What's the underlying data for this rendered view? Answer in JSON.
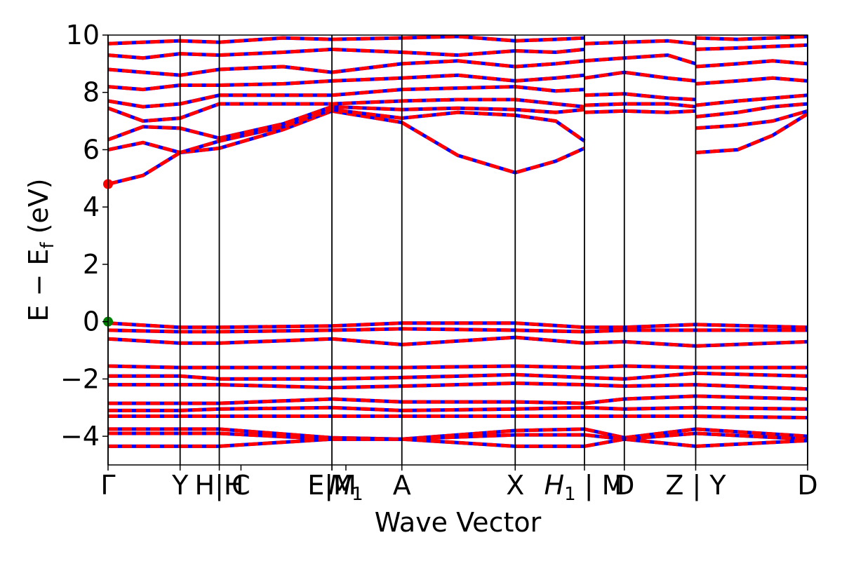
{
  "chart_data": {
    "type": "line",
    "xlabel": "Wave Vector",
    "ylabel": "E − E",
    "ylabel_sub": "f",
    "ylabel_unit": " (eV)",
    "ylim": [
      -5,
      10
    ],
    "yticks": [
      -4,
      -2,
      0,
      2,
      4,
      6,
      8,
      10
    ],
    "ytick_labels": [
      "−4",
      "−2",
      "0",
      "2",
      "4",
      "6",
      "8",
      "10"
    ],
    "kpath": [
      {
        "label": "Γ",
        "x": 0.0
      },
      {
        "label": "Y",
        "x": 0.103
      },
      {
        "label": "H|H",
        "x": 0.159
      },
      {
        "label": "C",
        "x": 0.19
      },
      {
        "label": "E|M",
        "x": 0.32
      },
      {
        "label": "E|M",
        "x": 0.32
      },
      {
        "label": "M",
        "x": 0.34,
        "sub": "1"
      },
      {
        "label": "A",
        "x": 0.42
      },
      {
        "label": "X",
        "x": 0.582
      },
      {
        "label": "H",
        "x": 0.681,
        "sub": "1",
        "suffix": " | M"
      },
      {
        "label": "D",
        "x": 0.738
      },
      {
        "label": "Z | Y",
        "x": 0.84
      },
      {
        "label": "D",
        "x": 1.0
      }
    ],
    "vlines": [
      0.0,
      0.103,
      0.159,
      0.32,
      0.42,
      0.582,
      0.681,
      0.738,
      0.84,
      1.0
    ],
    "colors": {
      "primary": "#ff0000",
      "secondary": "#0000ff",
      "marker_vbm": "#008000",
      "marker_cbm": "#ff0000"
    },
    "markers": [
      {
        "name": "VBM",
        "x": 0.0,
        "y": 0.0
      },
      {
        "name": "CBM",
        "x": 0.0,
        "y": 4.8
      }
    ],
    "series": [
      {
        "x": [
          0.0,
          0.05,
          0.103,
          0.159,
          0.25,
          0.32,
          0.42,
          0.5,
          0.582,
          0.64,
          0.681
        ],
        "y": [
          4.8,
          5.1,
          5.9,
          6.05,
          6.7,
          7.35,
          6.95,
          5.8,
          5.2,
          5.6,
          6.05
        ]
      },
      {
        "x": [
          0.0,
          0.05,
          0.103,
          0.159,
          0.25,
          0.32,
          0.42,
          0.5,
          0.582,
          0.64,
          0.681
        ],
        "y": [
          6.0,
          6.25,
          5.9,
          6.3,
          6.8,
          7.4,
          7.1,
          7.3,
          7.2,
          7.0,
          6.3
        ]
      },
      {
        "x": [
          0.0,
          0.05,
          0.103,
          0.159,
          0.25,
          0.32,
          0.42,
          0.5,
          0.582,
          0.64,
          0.681
        ],
        "y": [
          6.35,
          6.8,
          6.75,
          6.4,
          6.9,
          7.5,
          7.4,
          7.45,
          7.4,
          7.3,
          7.4
        ]
      },
      {
        "x": [
          0.0,
          0.05,
          0.103,
          0.159,
          0.25,
          0.32,
          0.42,
          0.5,
          0.582,
          0.64,
          0.681
        ],
        "y": [
          7.45,
          7.0,
          7.1,
          7.6,
          7.6,
          7.6,
          7.7,
          7.75,
          7.75,
          7.6,
          7.5
        ]
      },
      {
        "x": [
          0.0,
          0.05,
          0.103,
          0.159,
          0.25,
          0.32,
          0.42,
          0.5,
          0.582,
          0.64,
          0.681
        ],
        "y": [
          7.7,
          7.5,
          7.6,
          7.9,
          7.9,
          7.9,
          8.1,
          8.15,
          8.2,
          8.05,
          8.1
        ]
      },
      {
        "x": [
          0.0,
          0.05,
          0.103,
          0.159,
          0.25,
          0.32,
          0.42,
          0.5,
          0.582,
          0.64,
          0.681
        ],
        "y": [
          8.2,
          8.1,
          8.25,
          8.25,
          8.3,
          8.4,
          8.5,
          8.6,
          8.4,
          8.5,
          8.6
        ]
      },
      {
        "x": [
          0.0,
          0.05,
          0.103,
          0.159,
          0.25,
          0.32,
          0.42,
          0.5,
          0.582,
          0.64,
          0.681
        ],
        "y": [
          8.8,
          8.7,
          8.6,
          8.8,
          8.9,
          8.7,
          9.0,
          9.1,
          8.9,
          9.0,
          9.1
        ]
      },
      {
        "x": [
          0.0,
          0.05,
          0.103,
          0.159,
          0.25,
          0.32,
          0.42,
          0.5,
          0.582,
          0.64,
          0.681
        ],
        "y": [
          9.3,
          9.2,
          9.35,
          9.3,
          9.4,
          9.5,
          9.4,
          9.3,
          9.45,
          9.4,
          9.5
        ]
      },
      {
        "x": [
          0.0,
          0.05,
          0.103,
          0.159,
          0.25,
          0.32,
          0.42,
          0.5,
          0.582,
          0.64,
          0.681
        ],
        "y": [
          9.7,
          9.75,
          9.8,
          9.75,
          9.9,
          9.85,
          9.9,
          9.95,
          9.8,
          9.85,
          9.9
        ]
      },
      {
        "x": [
          0.681,
          0.738,
          0.8,
          0.84
        ],
        "y": [
          7.3,
          7.35,
          7.3,
          7.35
        ]
      },
      {
        "x": [
          0.681,
          0.738,
          0.8,
          0.84
        ],
        "y": [
          7.55,
          7.6,
          7.6,
          7.5
        ]
      },
      {
        "x": [
          0.681,
          0.738,
          0.8,
          0.84
        ],
        "y": [
          7.9,
          7.95,
          7.8,
          7.75
        ]
      },
      {
        "x": [
          0.681,
          0.738,
          0.8,
          0.84
        ],
        "y": [
          8.5,
          8.7,
          8.5,
          8.4
        ]
      },
      {
        "x": [
          0.681,
          0.738,
          0.8,
          0.84
        ],
        "y": [
          9.1,
          9.2,
          9.3,
          9.0
        ]
      },
      {
        "x": [
          0.681,
          0.738,
          0.8,
          0.84
        ],
        "y": [
          9.7,
          9.75,
          9.8,
          9.7
        ]
      },
      {
        "x": [
          0.84,
          0.9,
          0.95,
          1.0
        ],
        "y": [
          5.9,
          6.0,
          6.5,
          7.25
        ]
      },
      {
        "x": [
          0.84,
          0.9,
          0.95,
          1.0
        ],
        "y": [
          6.75,
          6.85,
          7.0,
          7.35
        ]
      },
      {
        "x": [
          0.84,
          0.9,
          0.95,
          1.0
        ],
        "y": [
          7.15,
          7.3,
          7.5,
          7.6
        ]
      },
      {
        "x": [
          0.84,
          0.9,
          0.95,
          1.0
        ],
        "y": [
          7.55,
          7.7,
          7.8,
          7.9
        ]
      },
      {
        "x": [
          0.84,
          0.9,
          0.95,
          1.0
        ],
        "y": [
          8.3,
          8.4,
          8.5,
          8.4
        ]
      },
      {
        "x": [
          0.84,
          0.9,
          0.95,
          1.0
        ],
        "y": [
          8.9,
          9.0,
          9.1,
          9.0
        ]
      },
      {
        "x": [
          0.84,
          0.9,
          0.95,
          1.0
        ],
        "y": [
          9.5,
          9.55,
          9.6,
          9.65
        ]
      },
      {
        "x": [
          0.84,
          0.9,
          0.95,
          1.0
        ],
        "y": [
          9.9,
          9.85,
          9.9,
          9.95
        ]
      },
      {
        "x": [
          0.0,
          0.103,
          0.159,
          0.32,
          0.42,
          0.582,
          0.681,
          0.738,
          0.84,
          1.0
        ],
        "y": [
          -0.05,
          -0.2,
          -0.2,
          -0.15,
          -0.05,
          -0.05,
          -0.2,
          -0.2,
          -0.1,
          -0.2
        ]
      },
      {
        "x": [
          0.0,
          0.103,
          0.159,
          0.32,
          0.42,
          0.582,
          0.681,
          0.738,
          0.84,
          1.0
        ],
        "y": [
          -0.3,
          -0.35,
          -0.35,
          -0.3,
          -0.25,
          -0.3,
          -0.35,
          -0.3,
          -0.3,
          -0.3
        ]
      },
      {
        "x": [
          0.0,
          0.103,
          0.159,
          0.32,
          0.42,
          0.582,
          0.681,
          0.738,
          0.84,
          1.0
        ],
        "y": [
          -0.6,
          -0.75,
          -0.75,
          -0.6,
          -0.8,
          -0.55,
          -0.75,
          -0.7,
          -0.85,
          -0.7
        ]
      },
      {
        "x": [
          0.0,
          0.103,
          0.159,
          0.32,
          0.42,
          0.582,
          0.681,
          0.738,
          0.84,
          1.0
        ],
        "y": [
          -1.55,
          -1.6,
          -1.6,
          -1.6,
          -1.6,
          -1.55,
          -1.6,
          -1.55,
          -1.6,
          -1.6
        ]
      },
      {
        "x": [
          0.0,
          0.103,
          0.159,
          0.32,
          0.42,
          0.582,
          0.681,
          0.738,
          0.84,
          1.0
        ],
        "y": [
          -1.9,
          -1.9,
          -2.0,
          -2.0,
          -1.95,
          -1.85,
          -1.95,
          -2.0,
          -1.8,
          -1.9
        ]
      },
      {
        "x": [
          0.0,
          0.103,
          0.159,
          0.32,
          0.42,
          0.582,
          0.681,
          0.738,
          0.84,
          1.0
        ],
        "y": [
          -2.2,
          -2.2,
          -2.2,
          -2.3,
          -2.25,
          -2.15,
          -2.2,
          -2.25,
          -2.2,
          -2.35
        ]
      },
      {
        "x": [
          0.0,
          0.103,
          0.159,
          0.32,
          0.42,
          0.582,
          0.681,
          0.738,
          0.84,
          1.0
        ],
        "y": [
          -2.85,
          -2.85,
          -2.85,
          -2.7,
          -2.8,
          -2.8,
          -2.85,
          -2.7,
          -2.6,
          -2.7
        ]
      },
      {
        "x": [
          0.0,
          0.103,
          0.159,
          0.32,
          0.42,
          0.582,
          0.681,
          0.738,
          0.84,
          1.0
        ],
        "y": [
          -3.1,
          -3.1,
          -3.05,
          -3.0,
          -3.1,
          -3.05,
          -3.0,
          -3.05,
          -3.0,
          -3.05
        ]
      },
      {
        "x": [
          0.0,
          0.103,
          0.159,
          0.32,
          0.42,
          0.582,
          0.681,
          0.738,
          0.84,
          1.0
        ],
        "y": [
          -3.3,
          -3.3,
          -3.3,
          -3.3,
          -3.3,
          -3.3,
          -3.3,
          -3.3,
          -3.3,
          -3.35
        ]
      },
      {
        "x": [
          0.0,
          0.103,
          0.159,
          0.32,
          0.42,
          0.582,
          0.681,
          0.738,
          0.84,
          1.0
        ],
        "y": [
          -3.75,
          -3.75,
          -3.75,
          -4.05,
          -4.1,
          -3.8,
          -3.75,
          -4.05,
          -3.75,
          -4.0
        ]
      },
      {
        "x": [
          0.0,
          0.103,
          0.159,
          0.32,
          0.42,
          0.582,
          0.681,
          0.738,
          0.84,
          1.0
        ],
        "y": [
          -3.9,
          -3.9,
          -3.9,
          -4.1,
          -4.1,
          -3.95,
          -3.95,
          -4.1,
          -3.9,
          -4.1
        ]
      },
      {
        "x": [
          0.0,
          0.103,
          0.159,
          0.32,
          0.42,
          0.582,
          0.681,
          0.738,
          0.84,
          1.0
        ],
        "y": [
          -4.35,
          -4.35,
          -4.35,
          -4.1,
          -4.1,
          -4.35,
          -4.35,
          -4.1,
          -4.35,
          -4.15
        ]
      }
    ]
  }
}
